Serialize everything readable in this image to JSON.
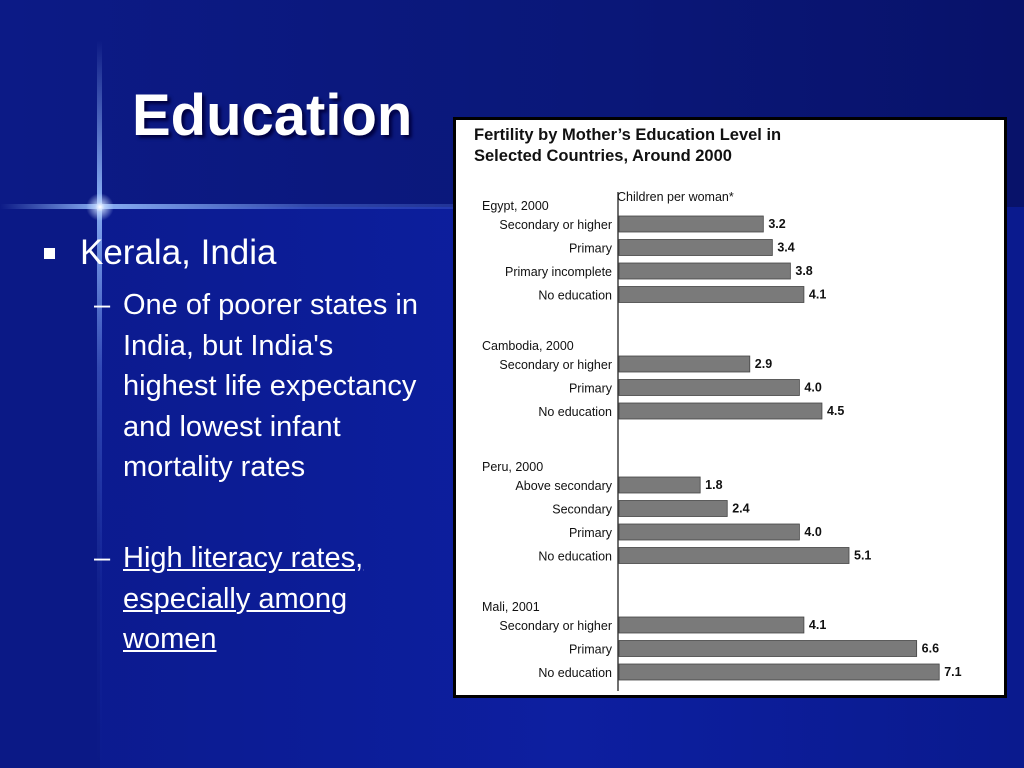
{
  "slide": {
    "title": "Education",
    "bullet": "Kerala, India",
    "subbullets": [
      {
        "dash": "–",
        "text": "One of poorer states in India, but India's highest life expectancy and lowest infant mortality rates"
      },
      {
        "dash": "–",
        "text": "High literacy rates, especially among women"
      }
    ]
  },
  "chart_data": {
    "type": "bar",
    "orientation": "horizontal",
    "title": "Fertility by Mother’s Education Level in Selected Countries, Around 2000",
    "xlabel": "Children per woman*",
    "xlim": [
      0,
      7.5
    ],
    "bar_color": "#7a7a7a",
    "groups": [
      {
        "name": "Egypt, 2000",
        "categories": [
          "Secondary or higher",
          "Primary",
          "Primary incomplete",
          "No education"
        ],
        "values": [
          3.2,
          3.4,
          3.8,
          4.1
        ]
      },
      {
        "name": "Cambodia, 2000",
        "categories": [
          "Secondary or higher",
          "Primary",
          "No education"
        ],
        "values": [
          2.9,
          4.0,
          4.5
        ]
      },
      {
        "name": "Peru, 2000",
        "categories": [
          "Above secondary",
          "Secondary",
          "Primary",
          "No education"
        ],
        "values": [
          1.8,
          2.4,
          4.0,
          5.1
        ]
      },
      {
        "name": "Mali, 2001",
        "categories": [
          "Secondary or higher",
          "Primary",
          "No education"
        ],
        "values": [
          4.1,
          6.6,
          7.1
        ]
      }
    ]
  }
}
